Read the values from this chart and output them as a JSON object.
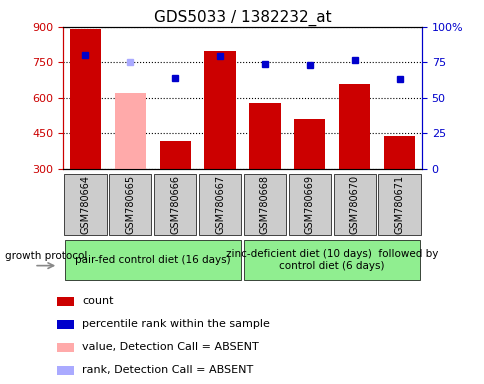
{
  "title": "GDS5033 / 1382232_at",
  "samples": [
    "GSM780664",
    "GSM780665",
    "GSM780666",
    "GSM780667",
    "GSM780668",
    "GSM780669",
    "GSM780670",
    "GSM780671"
  ],
  "bar_values": [
    893,
    622,
    418,
    800,
    577,
    510,
    660,
    440
  ],
  "bar_colors": [
    "#cc0000",
    "#ffaaaa",
    "#cc0000",
    "#cc0000",
    "#cc0000",
    "#cc0000",
    "#cc0000",
    "#cc0000"
  ],
  "dot_values": [
    780,
    752,
    685,
    775,
    745,
    737,
    760,
    680
  ],
  "dot_colors": [
    "#0000cc",
    "#aaaaff",
    "#0000cc",
    "#0000cc",
    "#0000cc",
    "#0000cc",
    "#0000cc",
    "#0000cc"
  ],
  "ylim_left": [
    300,
    900
  ],
  "ylim_right": [
    0,
    100
  ],
  "yticks_left": [
    300,
    450,
    600,
    750,
    900
  ],
  "yticks_right": [
    0,
    25,
    50,
    75,
    100
  ],
  "ytick_labels_right": [
    "0",
    "25",
    "50",
    "75",
    "100%"
  ],
  "group1_label": "pair-fed control diet (16 days)",
  "group2_label": "zinc-deficient diet (10 days)  followed by\ncontrol diet (6 days)",
  "growth_protocol_label": "growth protocol",
  "legend_items": [
    {
      "label": "count",
      "color": "#cc0000"
    },
    {
      "label": "percentile rank within the sample",
      "color": "#0000cc"
    },
    {
      "label": "value, Detection Call = ABSENT",
      "color": "#ffaaaa"
    },
    {
      "label": "rank, Detection Call = ABSENT",
      "color": "#aaaaff"
    }
  ],
  "bar_bottom": 300,
  "title_fontsize": 11,
  "tick_fontsize": 8,
  "legend_fontsize": 8,
  "group_label_fontsize": 7.5,
  "sample_fontsize": 7,
  "left_tick_color": "#cc0000",
  "right_tick_color": "#0000cc",
  "grid_linestyle": ":"
}
